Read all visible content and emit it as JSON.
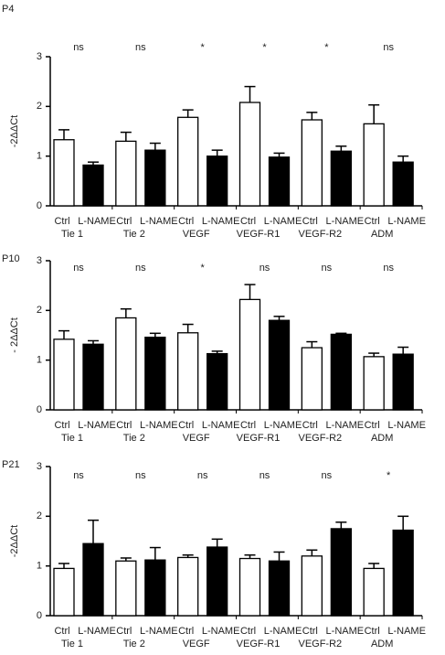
{
  "chart_data": [
    {
      "type": "bar",
      "title": "P4",
      "ylabel": "-2ΔΔCt",
      "groups": [
        "Tie 1",
        "Tie 2",
        "VEGF",
        "VEGF-R1",
        "VEGF-R2",
        "ADM"
      ],
      "series": [
        {
          "name": "Ctrl",
          "color": "#ffffff",
          "values": [
            1.33,
            1.3,
            1.78,
            2.08,
            1.73,
            1.65
          ],
          "errors": [
            0.2,
            0.18,
            0.15,
            0.32,
            0.15,
            0.38
          ]
        },
        {
          "name": "L-NAME",
          "color": "#000000",
          "values": [
            0.82,
            1.12,
            1.0,
            0.98,
            1.1,
            0.88
          ],
          "errors": [
            0.06,
            0.14,
            0.12,
            0.08,
            0.1,
            0.12
          ]
        }
      ],
      "annotations": [
        "ns",
        "ns",
        "*",
        "*",
        "*",
        "ns"
      ],
      "ylim": [
        0,
        3
      ],
      "yticks": [
        0,
        1,
        2,
        3
      ]
    },
    {
      "type": "bar",
      "title": "P10",
      "ylabel": "- 2ΔΔCt",
      "groups": [
        "Tie 1",
        "Tie 2",
        "VEGF",
        "VEGF-R1",
        "VEGF-R2",
        "ADM"
      ],
      "series": [
        {
          "name": "Ctrl",
          "color": "#ffffff",
          "values": [
            1.42,
            1.85,
            1.55,
            2.22,
            1.25,
            1.07
          ],
          "errors": [
            0.17,
            0.18,
            0.17,
            0.3,
            0.12,
            0.07
          ]
        },
        {
          "name": "L-NAME",
          "color": "#000000",
          "values": [
            1.32,
            1.46,
            1.13,
            1.8,
            1.52,
            1.12
          ],
          "errors": [
            0.07,
            0.08,
            0.05,
            0.08,
            0.02,
            0.14
          ]
        }
      ],
      "annotations": [
        "ns",
        "ns",
        "*",
        "ns",
        "ns",
        "ns"
      ],
      "ylim": [
        0,
        3
      ],
      "yticks": [
        0,
        1,
        2,
        3
      ]
    },
    {
      "type": "bar",
      "title": "P21",
      "ylabel": "-2ΔΔCt",
      "groups": [
        "Tie 1",
        "Tie 2",
        "VEGF",
        "VEGF-R1",
        "VEGF-R2",
        "ADM"
      ],
      "series": [
        {
          "name": "Ctrl",
          "color": "#ffffff",
          "values": [
            0.95,
            1.1,
            1.17,
            1.15,
            1.2,
            0.95
          ],
          "errors": [
            0.1,
            0.06,
            0.05,
            0.07,
            0.12,
            0.1
          ]
        },
        {
          "name": "L-NAME",
          "color": "#000000",
          "values": [
            1.45,
            1.12,
            1.38,
            1.1,
            1.75,
            1.72
          ],
          "errors": [
            0.47,
            0.25,
            0.16,
            0.18,
            0.13,
            0.28
          ]
        }
      ],
      "annotations": [
        "ns",
        "ns",
        "ns",
        "ns",
        "ns",
        "*"
      ],
      "ylim": [
        0,
        3
      ],
      "yticks": [
        0,
        1,
        2,
        3
      ]
    }
  ]
}
